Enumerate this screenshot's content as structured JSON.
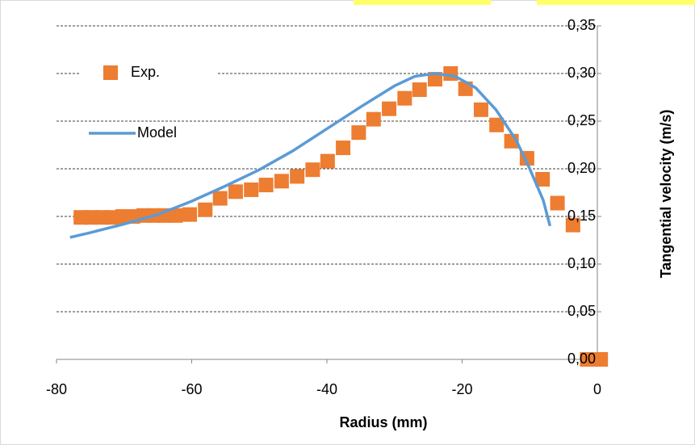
{
  "chart_data": {
    "type": "scatter",
    "x_label": "Radius (mm)",
    "y_label": "Tangential velocity (m/s)",
    "xlim": [
      -80,
      0
    ],
    "xticks": [
      -80,
      -60,
      -40,
      -20,
      0
    ],
    "ylim": [
      0,
      0.35
    ],
    "yticks": [
      {
        "value": 0,
        "label": "0,00"
      },
      {
        "value": 0.05,
        "label": "0,05"
      },
      {
        "value": 0.1,
        "label": "0,10"
      },
      {
        "value": 0.15,
        "label": "0,15"
      },
      {
        "value": 0.2,
        "label": "0,20"
      },
      {
        "value": 0.25,
        "label": "0,25"
      },
      {
        "value": 0.3,
        "label": "0,30"
      },
      {
        "value": 0.35,
        "label": "0,35"
      }
    ],
    "grid": true,
    "series": [
      {
        "name": "Exp.",
        "color": "#ed7d31",
        "marker": "square",
        "x": [
          -76.4,
          -74.9,
          -73.3,
          -71.8,
          -70.2,
          -68.7,
          -67.1,
          -65.6,
          -64.0,
          -62.4,
          -60.3,
          -58.0,
          -55.8,
          -53.5,
          -51.2,
          -49.0,
          -46.7,
          -44.4,
          -42.1,
          -39.9,
          -37.6,
          -35.3,
          -33.1,
          -30.8,
          -28.5,
          -26.3,
          -24.0,
          -21.7,
          -19.5,
          -17.2,
          -14.9,
          -12.7,
          -10.4,
          -8.1,
          -5.9,
          -3.6,
          -1.5,
          0.5
        ],
        "values": [
          0.149,
          0.149,
          0.149,
          0.149,
          0.15,
          0.15,
          0.151,
          0.151,
          0.151,
          0.151,
          0.152,
          0.157,
          0.169,
          0.176,
          0.178,
          0.183,
          0.187,
          0.192,
          0.199,
          0.208,
          0.222,
          0.238,
          0.252,
          0.263,
          0.274,
          0.283,
          0.294,
          0.3,
          0.284,
          0.262,
          0.246,
          0.229,
          0.211,
          0.189,
          0.164,
          0.141,
          0,
          0
        ]
      },
      {
        "name": "Model",
        "color": "#5b9bd5",
        "marker": "line",
        "x": [
          -78,
          -75,
          -70,
          -65,
          -60,
          -55,
          -50,
          -45,
          -40,
          -35,
          -30,
          -27,
          -24,
          -21,
          -18,
          -15,
          -12,
          -10,
          -8,
          -7
        ],
        "values": [
          0.128,
          0.133,
          0.142,
          0.152,
          0.166,
          0.182,
          0.199,
          0.219,
          0.242,
          0.265,
          0.287,
          0.297,
          0.3,
          0.297,
          0.285,
          0.262,
          0.23,
          0.2,
          0.167,
          0.14
        ]
      }
    ]
  }
}
